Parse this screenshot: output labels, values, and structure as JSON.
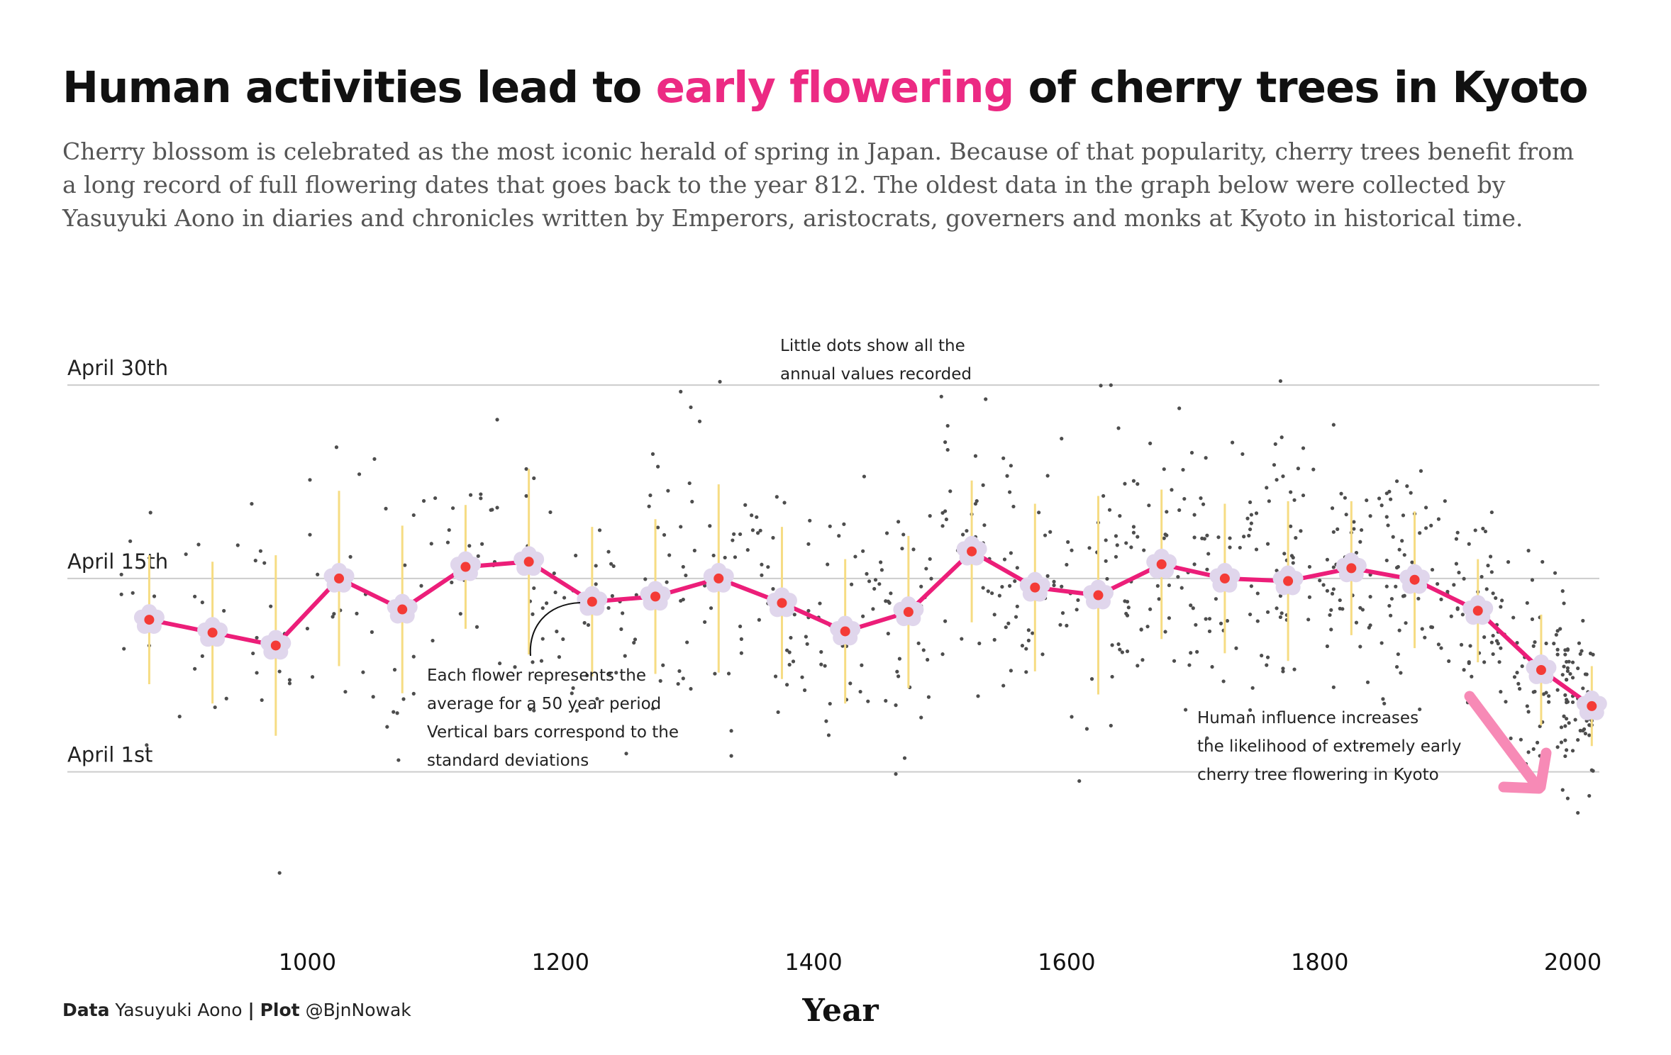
{
  "title": {
    "pre": "Human activities lead to ",
    "highlight": "early flowering",
    "post": " of cherry trees in Kyoto"
  },
  "subtitle": "Cherry blossom is celebrated as the most iconic herald of spring in Japan. Because of that popularity, cherry trees benefit from a long record of full flowering dates that goes back to the year 812. The oldest data in the graph below were collected by Yasuyuki Aono in diaries and chronicles written by Emperors, aristocrats, governers and monks at Kyoto in historical time.",
  "caption": {
    "data_label": "Data",
    "data_value": "Yasuyuki Aono",
    "sep": "|",
    "plot_label": "Plot",
    "plot_value": "@BjnNowak"
  },
  "colors": {
    "line": "#ec1e79",
    "flower": "#e0d6ec",
    "flower_center": "#f43b36",
    "sd_bar": "#f6dc83",
    "dots": "#4d4d4d",
    "arrow": "#f78ab6",
    "grid": "#cccccc"
  },
  "chart_data": {
    "type": "line",
    "xlabel": "Year",
    "ylabel": "",
    "xlim": [
      812,
      2021
    ],
    "ylim": [
      -13,
      42
    ],
    "x_ticks": [
      1000,
      1200,
      1400,
      1600,
      1800,
      2000
    ],
    "y_gridlines": [
      {
        "value": 0,
        "label": "April 1st"
      },
      {
        "value": 15,
        "label": "April 15th"
      },
      {
        "value": 30,
        "label": "April 30th"
      }
    ],
    "series": [
      {
        "kind": "50-year average flowering day (days after April 1st)",
        "x": [
          875,
          925,
          975,
          1025,
          1075,
          1125,
          1175,
          1225,
          1275,
          1325,
          1375,
          1425,
          1475,
          1525,
          1575,
          1625,
          1675,
          1725,
          1775,
          1825,
          1875,
          1925,
          1975,
          2015
        ],
        "mean": [
          11.8,
          10.8,
          9.8,
          15.0,
          12.6,
          15.9,
          16.3,
          13.2,
          13.6,
          15.0,
          13.1,
          10.9,
          12.4,
          17.1,
          14.3,
          13.7,
          16.1,
          15.0,
          14.8,
          15.8,
          14.9,
          12.5,
          7.9,
          5.1
        ],
        "sd": [
          5.0,
          5.5,
          7.0,
          6.8,
          6.5,
          4.8,
          7.2,
          5.8,
          6.0,
          7.3,
          5.9,
          5.6,
          5.9,
          5.5,
          6.5,
          7.7,
          5.8,
          5.8,
          6.2,
          5.2,
          5.3,
          4.0,
          4.3,
          3.1
        ]
      }
    ],
    "annotations": [
      {
        "id": "dots",
        "lines": [
          "Little dots show all the",
          "annual values recorded"
        ]
      },
      {
        "id": "flowers",
        "lines": [
          "Each flower represents the",
          "average for a 50 year period",
          "Vertical bars correspond to the",
          "standard deviations"
        ]
      },
      {
        "id": "human",
        "lines": [
          "Human influence increases",
          "the likelihood of extremely early",
          "cherry tree flowering in Kyoto"
        ]
      }
    ]
  }
}
